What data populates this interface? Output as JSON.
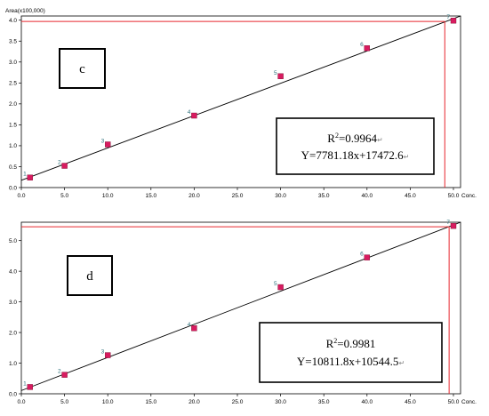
{
  "chart_data": [
    {
      "type": "scatter",
      "panel_label": "c",
      "ylabel": "Area(x100,000)",
      "xlabel": "Conc.",
      "xlim": [
        0,
        50
      ],
      "ylim": [
        0,
        4.1
      ],
      "xticks": [
        "0.0",
        "5.0",
        "10.0",
        "15.0",
        "20.0",
        "25.0",
        "30.0",
        "35.0",
        "40.0",
        "45.0",
        "50.0"
      ],
      "yticks": [
        "0.0",
        "0.5",
        "1.0",
        "1.5",
        "2.0",
        "2.5",
        "3.0",
        "3.5",
        "4.0"
      ],
      "points": [
        {
          "label": "1",
          "x": 1.0,
          "y": 0.24
        },
        {
          "label": "2",
          "x": 5.0,
          "y": 0.52
        },
        {
          "label": "3",
          "x": 10.0,
          "y": 1.03
        },
        {
          "label": "4",
          "x": 20.0,
          "y": 1.72
        },
        {
          "label": "5",
          "x": 30.0,
          "y": 2.66
        },
        {
          "label": "6",
          "x": 40.0,
          "y": 3.33
        },
        {
          "label": "7",
          "x": 50.0,
          "y": 3.99
        }
      ],
      "fit": {
        "slope": 7781.18,
        "intercept": 17472.6,
        "scale": 100000,
        "x_range": [
          0,
          52.1
        ]
      },
      "crosshair": {
        "x": 49.0,
        "y": 3.97,
        "color": "#e8262d"
      },
      "r2_label": "R",
      "r2_sup": "2",
      "r2_value": "=0.9964",
      "equation": "Y=7781.18x+17472.6",
      "equation_mark": "↵",
      "marker_color": "#d81b60",
      "line_color": "#000000"
    },
    {
      "type": "scatter",
      "panel_label": "d",
      "ylabel": "",
      "xlabel": "Conc.",
      "xlim": [
        0,
        50
      ],
      "ylim": [
        0,
        5.6
      ],
      "xticks": [
        "0.0",
        "5.0",
        "10.0",
        "15.0",
        "20.0",
        "25.0",
        "30.0",
        "35.0",
        "40.0",
        "45.0",
        "50.0"
      ],
      "yticks": [
        "0.0",
        "1.0",
        "2.0",
        "3.0",
        "4.0",
        "5.0"
      ],
      "points": [
        {
          "label": "1",
          "x": 1.0,
          "y": 0.22
        },
        {
          "label": "2",
          "x": 5.0,
          "y": 0.62
        },
        {
          "label": "3",
          "x": 10.0,
          "y": 1.26
        },
        {
          "label": "4",
          "x": 20.0,
          "y": 2.14
        },
        {
          "label": "5",
          "x": 30.0,
          "y": 3.48
        },
        {
          "label": "6",
          "x": 40.0,
          "y": 4.45
        },
        {
          "label": "7",
          "x": 50.0,
          "y": 5.48
        }
      ],
      "fit": {
        "slope": 10811.8,
        "intercept": 10544.5,
        "scale": 100000,
        "x_range": [
          0,
          51.5
        ]
      },
      "crosshair": {
        "x": 49.5,
        "y": 5.45,
        "color": "#e8262d"
      },
      "r2_label": "R",
      "r2_sup": "2",
      "r2_value": "=0.9981",
      "equation": "Y=10811.8x+10544.5",
      "equation_mark": "↵",
      "marker_color": "#d81b60",
      "line_color": "#000000"
    }
  ]
}
